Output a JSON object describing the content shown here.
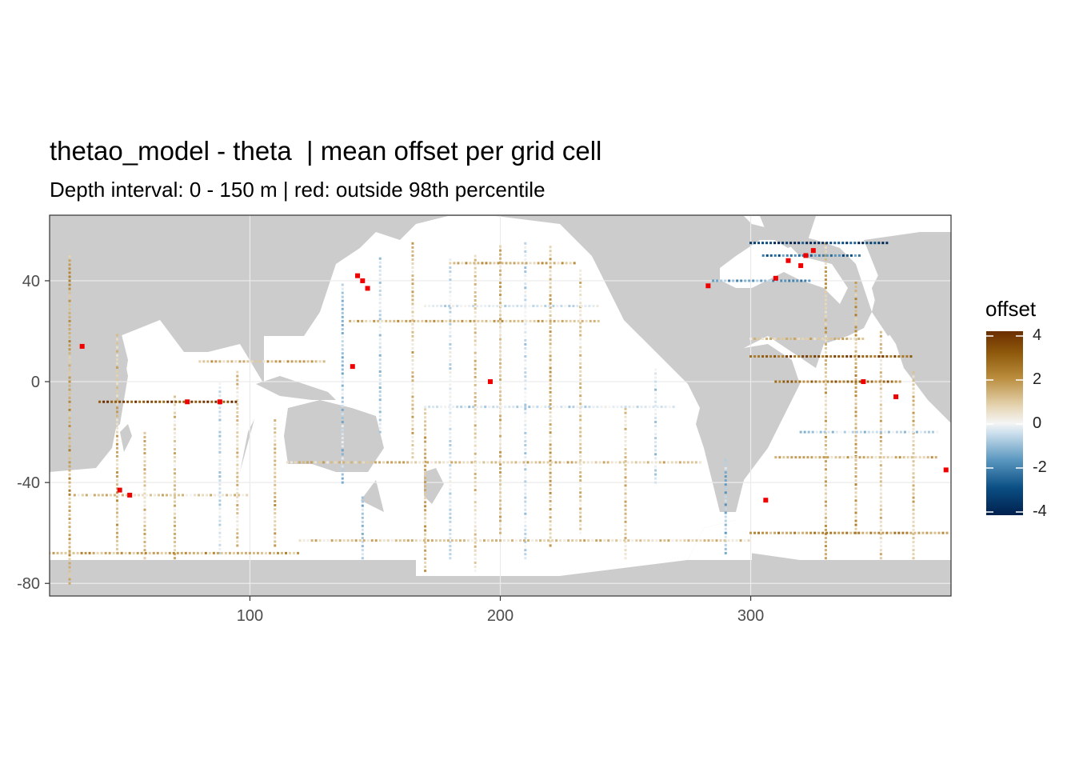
{
  "title": "thetao_model - theta  | mean offset per grid cell",
  "subtitle": "Depth interval: 0 - 150 m | red: outside 98th percentile",
  "colors": {
    "land": "#cccccc",
    "ocean": "#ffffff",
    "outlier": "#ee0000",
    "scale_low": "#00204d",
    "scale_mid": "#f5f5f5",
    "scale_high": "#6b2e00"
  },
  "chart_data": {
    "type": "heatmap",
    "x_axis": {
      "range": [
        20,
        380
      ],
      "ticks": [
        100,
        200,
        300
      ]
    },
    "y_axis": {
      "range": [
        -85,
        66
      ],
      "ticks": [
        40,
        0,
        -40,
        -80
      ]
    },
    "grid": true,
    "legend": {
      "title": "offset",
      "placement": "right",
      "ticks": [
        4,
        2,
        0,
        -2,
        -4
      ],
      "scale": "diverging blue-white-brown",
      "range": [
        -4,
        4
      ]
    },
    "outlier_rule": "red: outside 98th percentile",
    "transects": {
      "meridional": [
        {
          "lon": 28,
          "lat": [
            -80,
            50
          ],
          "offset": 1.5
        },
        {
          "lon": 47,
          "lat": [
            -68,
            20
          ],
          "offset": 1.2
        },
        {
          "lon": 58,
          "lat": [
            -70,
            -20
          ],
          "offset": 1.0
        },
        {
          "lon": 70,
          "lat": [
            -70,
            -5
          ],
          "offset": 0.8
        },
        {
          "lon": 88,
          "lat": [
            -68,
            0
          ],
          "offset": -0.6
        },
        {
          "lon": 95,
          "lat": [
            -65,
            5
          ],
          "offset": 0.8
        },
        {
          "lon": 110,
          "lat": [
            -65,
            -15
          ],
          "offset": 1.2
        },
        {
          "lon": 137,
          "lat": [
            -40,
            40
          ],
          "offset": -1.0
        },
        {
          "lon": 145,
          "lat": [
            -70,
            -45
          ],
          "offset": -1.2
        },
        {
          "lon": 152,
          "lat": [
            -20,
            50
          ],
          "offset": -0.8
        },
        {
          "lon": 165,
          "lat": [
            -30,
            55
          ],
          "offset": 1.0
        },
        {
          "lon": 170,
          "lat": [
            -75,
            -10
          ],
          "offset": 1.2
        },
        {
          "lon": 180,
          "lat": [
            -70,
            50
          ],
          "offset": -0.5
        },
        {
          "lon": 190,
          "lat": [
            -75,
            50
          ],
          "offset": 0.8
        },
        {
          "lon": 200,
          "lat": [
            -60,
            55
          ],
          "offset": 1.0
        },
        {
          "lon": 210,
          "lat": [
            -70,
            55
          ],
          "offset": -0.6
        },
        {
          "lon": 220,
          "lat": [
            -65,
            55
          ],
          "offset": 1.2
        },
        {
          "lon": 232,
          "lat": [
            -60,
            45
          ],
          "offset": 0.8
        },
        {
          "lon": 250,
          "lat": [
            -70,
            -10
          ],
          "offset": 0.9
        },
        {
          "lon": 262,
          "lat": [
            -40,
            5
          ],
          "offset": -0.7
        },
        {
          "lon": 290,
          "lat": [
            -68,
            -30
          ],
          "offset": -1.3
        },
        {
          "lon": 330,
          "lat": [
            -70,
            55
          ],
          "offset": 1.2
        },
        {
          "lon": 342,
          "lat": [
            -60,
            40
          ],
          "offset": 1.5
        },
        {
          "lon": 352,
          "lat": [
            -70,
            20
          ],
          "offset": 0.9
        },
        {
          "lon": 365,
          "lat": [
            -70,
            5
          ],
          "offset": 1.0
        }
      ],
      "zonal": [
        {
          "lat": -68,
          "lon": [
            20,
            120
          ],
          "offset": 1.5
        },
        {
          "lat": -63,
          "lon": [
            120,
            300
          ],
          "offset": 0.9
        },
        {
          "lat": -60,
          "lon": [
            300,
            380
          ],
          "offset": 1.8
        },
        {
          "lat": -45,
          "lon": [
            30,
            100
          ],
          "offset": 0.8
        },
        {
          "lat": -32,
          "lon": [
            115,
            280
          ],
          "offset": 1.0
        },
        {
          "lat": -30,
          "lon": [
            310,
            375
          ],
          "offset": 1.2
        },
        {
          "lat": -20,
          "lon": [
            320,
            375
          ],
          "offset": -0.8
        },
        {
          "lat": -8,
          "lon": [
            40,
            95
          ],
          "offset": 3.5
        },
        {
          "lat": -10,
          "lon": [
            170,
            270
          ],
          "offset": -0.6
        },
        {
          "lat": 8,
          "lon": [
            80,
            130
          ],
          "offset": 1.2
        },
        {
          "lat": 10,
          "lon": [
            300,
            365
          ],
          "offset": 3.0
        },
        {
          "lat": 0,
          "lon": [
            310,
            360
          ],
          "offset": 2.5
        },
        {
          "lat": 17,
          "lon": [
            300,
            345
          ],
          "offset": 1.0
        },
        {
          "lat": 24,
          "lon": [
            140,
            240
          ],
          "offset": 1.2
        },
        {
          "lat": 30,
          "lon": [
            170,
            240
          ],
          "offset": -0.5
        },
        {
          "lat": 47,
          "lon": [
            180,
            230
          ],
          "offset": 1.3
        },
        {
          "lat": 55,
          "lon": [
            300,
            355
          ],
          "offset": -3.5
        },
        {
          "lat": 50,
          "lon": [
            305,
            345
          ],
          "offset": -2.5
        },
        {
          "lat": 40,
          "lon": [
            285,
            325
          ],
          "offset": -1.8
        }
      ],
      "outliers": [
        {
          "lon": 145,
          "lat": 40
        },
        {
          "lon": 147,
          "lat": 37
        },
        {
          "lon": 143,
          "lat": 42
        },
        {
          "lon": 48,
          "lat": -43
        },
        {
          "lon": 52,
          "lat": -45
        },
        {
          "lon": 33,
          "lat": 14
        },
        {
          "lon": 75,
          "lat": -8
        },
        {
          "lon": 88,
          "lat": -8
        },
        {
          "lon": 320,
          "lat": 46
        },
        {
          "lon": 315,
          "lat": 48
        },
        {
          "lon": 322,
          "lat": 50
        },
        {
          "lon": 325,
          "lat": 52
        },
        {
          "lon": 310,
          "lat": 41
        },
        {
          "lon": 283,
          "lat": 38
        },
        {
          "lon": 306,
          "lat": -47
        },
        {
          "lon": 345,
          "lat": 0
        },
        {
          "lon": 358,
          "lat": -6
        },
        {
          "lon": 378,
          "lat": -35
        },
        {
          "lon": 196,
          "lat": 0
        },
        {
          "lon": 141,
          "lat": 6
        }
      ]
    }
  }
}
